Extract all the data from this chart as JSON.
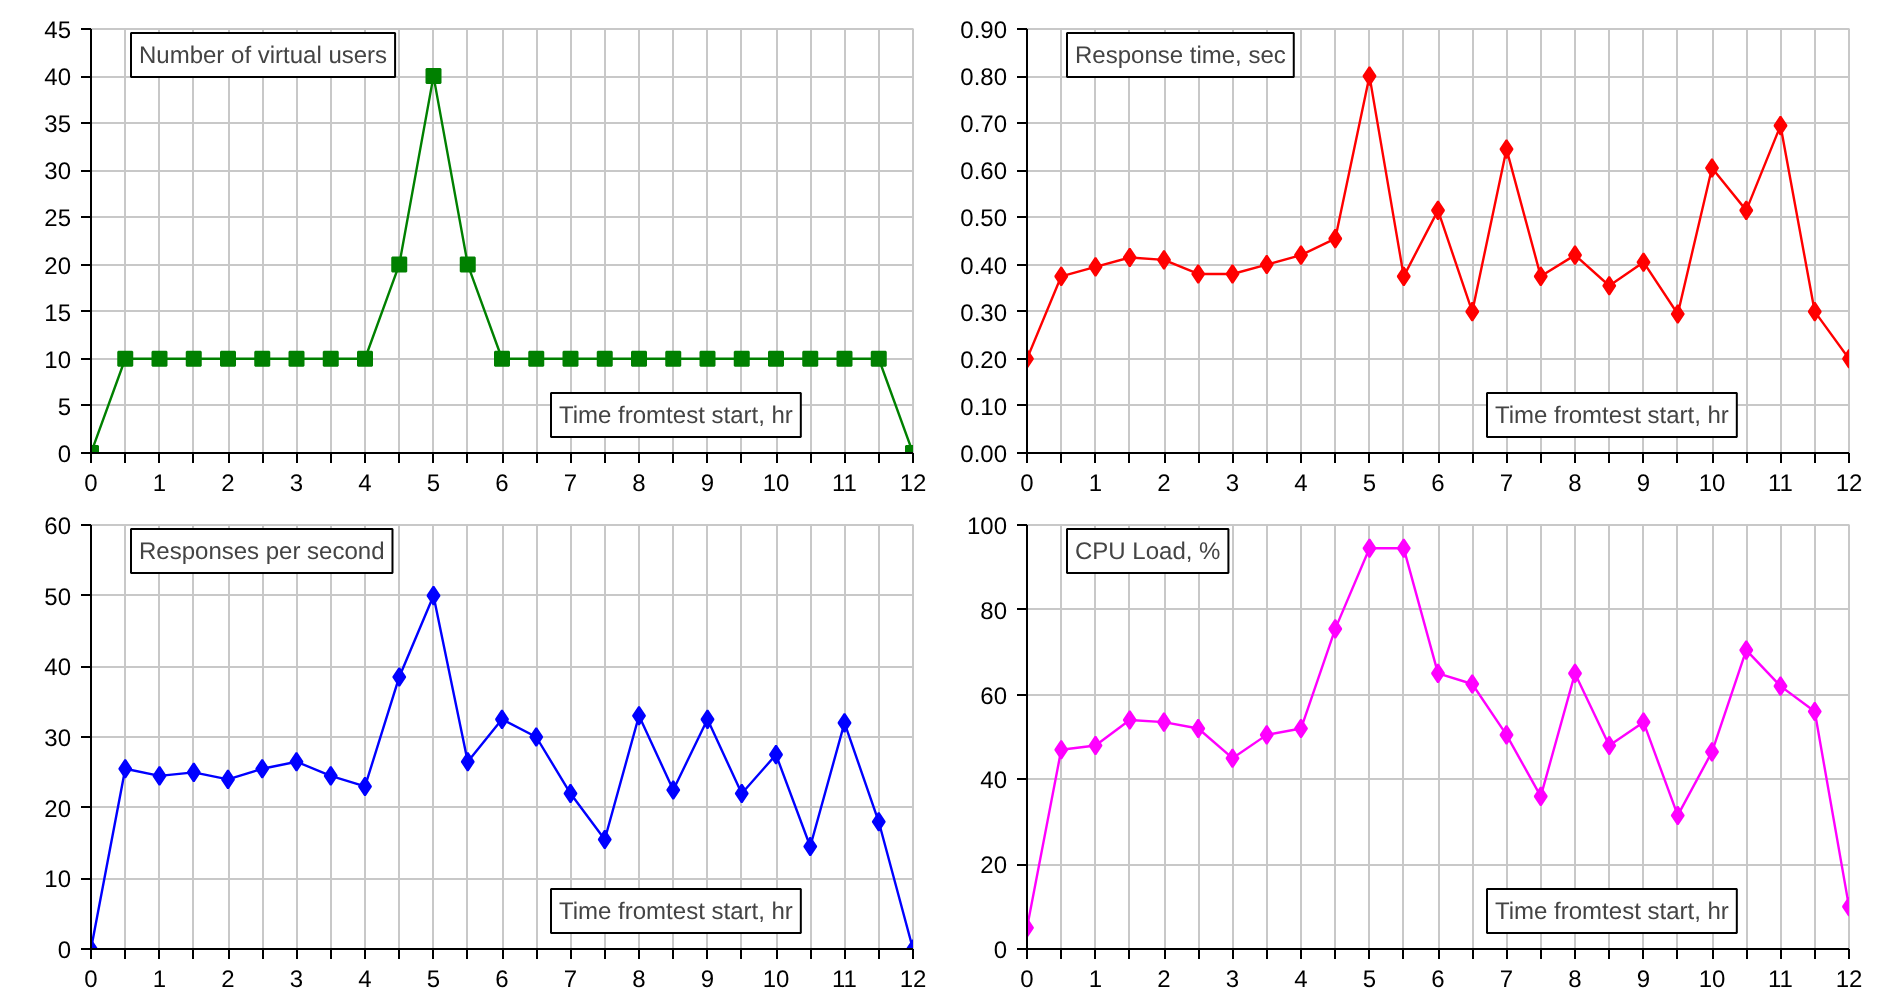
{
  "chart_data": [
    {
      "type": "line",
      "ylabel": "Number of virtual users",
      "xlabel": "Time fromtest start, hr",
      "marker": "square",
      "grid": true,
      "x": [
        0,
        0.5,
        1,
        1.5,
        2,
        2.5,
        3,
        3.5,
        4,
        4.5,
        5,
        5.5,
        6,
        6.5,
        7,
        7.5,
        8,
        8.5,
        9,
        9.5,
        10,
        10.5,
        11,
        11.5,
        12
      ],
      "series": [
        {
          "color": "#008000",
          "values": [
            0,
            10,
            10,
            10,
            10,
            10,
            10,
            10,
            10,
            20,
            40,
            20,
            10,
            10,
            10,
            10,
            10,
            10,
            10,
            10,
            10,
            10,
            10,
            10,
            0
          ]
        }
      ],
      "xlim": [
        0,
        12
      ],
      "ylim": [
        0,
        45
      ],
      "xticks": [
        0,
        {
          "value": 0.5,
          "label": null
        },
        1,
        {
          "value": 1.5,
          "label": null
        },
        2,
        {
          "value": 2.5,
          "label": null
        },
        3,
        {
          "value": 3.5,
          "label": null
        },
        4,
        {
          "value": 4.5,
          "label": null
        },
        5,
        {
          "value": 5.5,
          "label": null
        },
        6,
        {
          "value": 6.5,
          "label": null
        },
        7,
        {
          "value": 7.5,
          "label": null
        },
        8,
        {
          "value": 8.5,
          "label": null
        },
        9,
        {
          "value": 9.5,
          "label": null
        },
        10,
        {
          "value": 10.5,
          "label": null
        },
        11,
        {
          "value": 11.5,
          "label": null
        },
        12
      ],
      "yticks": [
        0,
        5,
        10,
        15,
        20,
        25,
        30,
        35,
        40,
        45
      ]
    },
    {
      "type": "line",
      "ylabel": "Response time, sec",
      "xlabel": "Time fromtest start, hr",
      "marker": "diamond",
      "grid": true,
      "x": [
        0,
        0.5,
        1,
        1.5,
        2,
        2.5,
        3,
        3.5,
        4,
        4.5,
        5,
        5.5,
        6,
        6.5,
        7,
        7.5,
        8,
        8.5,
        9,
        9.5,
        10,
        10.5,
        11,
        11.5,
        12
      ],
      "series": [
        {
          "color": "#ff0000",
          "values": [
            0.2,
            0.375,
            0.395,
            0.415,
            0.41,
            0.38,
            0.38,
            0.4,
            0.42,
            0.455,
            0.8,
            0.375,
            0.515,
            0.3,
            0.645,
            0.375,
            0.42,
            0.355,
            0.405,
            0.295,
            0.605,
            0.515,
            0.695,
            0.3,
            0.2
          ]
        }
      ],
      "xlim": [
        0,
        12
      ],
      "ylim": [
        0,
        0.9
      ],
      "xticks": [
        0,
        {
          "value": 0.5,
          "label": null
        },
        1,
        {
          "value": 1.5,
          "label": null
        },
        2,
        {
          "value": 2.5,
          "label": null
        },
        3,
        {
          "value": 3.5,
          "label": null
        },
        4,
        {
          "value": 4.5,
          "label": null
        },
        5,
        {
          "value": 5.5,
          "label": null
        },
        6,
        {
          "value": 6.5,
          "label": null
        },
        7,
        {
          "value": 7.5,
          "label": null
        },
        8,
        {
          "value": 8.5,
          "label": null
        },
        9,
        {
          "value": 9.5,
          "label": null
        },
        10,
        {
          "value": 10.5,
          "label": null
        },
        11,
        {
          "value": 11.5,
          "label": null
        },
        12
      ],
      "yticks": [
        {
          "value": 0,
          "label": "0.00"
        },
        {
          "value": 0.1,
          "label": "0.10"
        },
        {
          "value": 0.2,
          "label": "0.20"
        },
        {
          "value": 0.3,
          "label": "0.30"
        },
        {
          "value": 0.4,
          "label": "0.40"
        },
        {
          "value": 0.5,
          "label": "0.50"
        },
        {
          "value": 0.6,
          "label": "0.60"
        },
        {
          "value": 0.7,
          "label": "0.70"
        },
        {
          "value": 0.8,
          "label": "0.80"
        },
        {
          "value": 0.9,
          "label": "0.90"
        }
      ]
    },
    {
      "type": "line",
      "ylabel": "Responses per second",
      "xlabel": "Time fromtest start, hr",
      "marker": "diamond",
      "grid": true,
      "x": [
        0,
        0.5,
        1,
        1.5,
        2,
        2.5,
        3,
        3.5,
        4,
        4.5,
        5,
        5.5,
        6,
        6.5,
        7,
        7.5,
        8,
        8.5,
        9,
        9.5,
        10,
        10.5,
        11,
        11.5,
        12
      ],
      "series": [
        {
          "color": "#0000ff",
          "values": [
            0,
            25.5,
            24.5,
            25,
            24,
            25.5,
            26.5,
            24.5,
            23,
            38.5,
            50,
            26.5,
            32.5,
            30,
            22,
            15.5,
            33,
            22.5,
            32.5,
            22,
            27.5,
            14.5,
            32,
            18,
            0
          ]
        }
      ],
      "xlim": [
        0,
        12
      ],
      "ylim": [
        0,
        60
      ],
      "xticks": [
        0,
        {
          "value": 0.5,
          "label": null
        },
        1,
        {
          "value": 1.5,
          "label": null
        },
        2,
        {
          "value": 2.5,
          "label": null
        },
        3,
        {
          "value": 3.5,
          "label": null
        },
        4,
        {
          "value": 4.5,
          "label": null
        },
        5,
        {
          "value": 5.5,
          "label": null
        },
        6,
        {
          "value": 6.5,
          "label": null
        },
        7,
        {
          "value": 7.5,
          "label": null
        },
        8,
        {
          "value": 8.5,
          "label": null
        },
        9,
        {
          "value": 9.5,
          "label": null
        },
        10,
        {
          "value": 10.5,
          "label": null
        },
        11,
        {
          "value": 11.5,
          "label": null
        },
        12
      ],
      "yticks": [
        0,
        10,
        20,
        30,
        40,
        50,
        60
      ]
    },
    {
      "type": "line",
      "ylabel": "CPU Load, %",
      "xlabel": "Time fromtest start, hr",
      "marker": "diamond",
      "grid": true,
      "x": [
        0,
        0.5,
        1,
        1.5,
        2,
        2.5,
        3,
        3.5,
        4,
        4.5,
        5,
        5.5,
        6,
        6.5,
        7,
        7.5,
        8,
        8.5,
        9,
        9.5,
        10,
        10.5,
        11,
        11.5,
        12
      ],
      "series": [
        {
          "color": "#ff00ff",
          "values": [
            5,
            47,
            48,
            54,
            53.5,
            52,
            45,
            50.5,
            52,
            75.5,
            94.5,
            94.5,
            65,
            62.5,
            50.5,
            36,
            65,
            48,
            53.5,
            31.5,
            46.5,
            70.5,
            62,
            56,
            10
          ]
        }
      ],
      "xlim": [
        0,
        12
      ],
      "ylim": [
        0,
        100
      ],
      "xticks": [
        0,
        {
          "value": 0.5,
          "label": null
        },
        1,
        {
          "value": 1.5,
          "label": null
        },
        2,
        {
          "value": 2.5,
          "label": null
        },
        3,
        {
          "value": 3.5,
          "label": null
        },
        4,
        {
          "value": 4.5,
          "label": null
        },
        5,
        {
          "value": 5.5,
          "label": null
        },
        6,
        {
          "value": 6.5,
          "label": null
        },
        7,
        {
          "value": 7.5,
          "label": null
        },
        8,
        {
          "value": 8.5,
          "label": null
        },
        9,
        {
          "value": 9.5,
          "label": null
        },
        10,
        {
          "value": 10.5,
          "label": null
        },
        11,
        {
          "value": 11.5,
          "label": null
        },
        12
      ],
      "yticks": [
        0,
        20,
        40,
        60,
        80,
        100
      ]
    }
  ]
}
